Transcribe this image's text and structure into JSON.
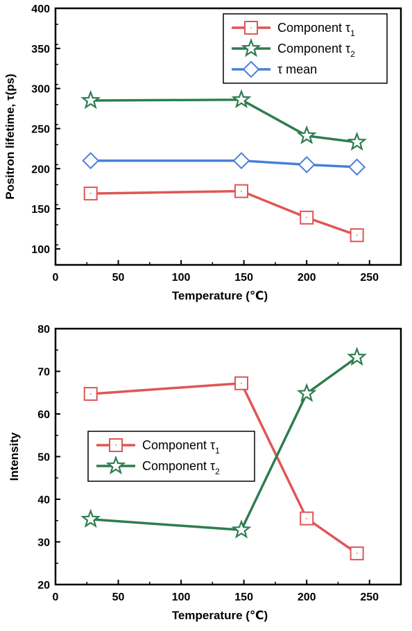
{
  "colors": {
    "tau1": "#e05555",
    "tau2": "#2e7d4f",
    "mean": "#4a7fd8",
    "axis": "#000000"
  },
  "chart_data": [
    {
      "type": "line",
      "title": "",
      "xlabel": "Temperature (℃)",
      "ylabel": "Positron lifetime, τ(ps)",
      "xlim": [
        0,
        275
      ],
      "ylim": [
        80,
        400
      ],
      "x_ticks": [
        0,
        50,
        100,
        150,
        200,
        250
      ],
      "y_ticks": [
        100,
        150,
        200,
        250,
        300,
        350,
        400
      ],
      "grid": false,
      "legend_position": "top-right",
      "x": [
        28,
        148,
        200,
        240
      ],
      "series": [
        {
          "key": "tau1",
          "name": "Component τ",
          "sub": "1",
          "marker": "square",
          "values": [
            169,
            172,
            139,
            117
          ]
        },
        {
          "key": "tau2",
          "name": "Component τ",
          "sub": "2",
          "marker": "star",
          "values": [
            285,
            286,
            241,
            233
          ]
        },
        {
          "key": "mean",
          "name": "τ mean",
          "sub": "",
          "marker": "diamond",
          "values": [
            210,
            210,
            205,
            202
          ]
        }
      ]
    },
    {
      "type": "line",
      "title": "",
      "xlabel": "Temperature (℃)",
      "ylabel": "Intensity",
      "xlim": [
        0,
        275
      ],
      "ylim": [
        20,
        80
      ],
      "x_ticks": [
        0,
        50,
        100,
        150,
        200,
        250
      ],
      "y_ticks": [
        20,
        30,
        40,
        50,
        60,
        70,
        80
      ],
      "grid": false,
      "legend_position": "center-left",
      "x": [
        28,
        148,
        200,
        240
      ],
      "series": [
        {
          "key": "tau1",
          "name": "Component τ",
          "sub": "1",
          "marker": "square",
          "values": [
            64.7,
            67.2,
            35.5,
            27.3
          ]
        },
        {
          "key": "tau2",
          "name": "Component τ",
          "sub": "2",
          "marker": "star",
          "values": [
            35.3,
            32.8,
            64.8,
            73.3
          ]
        }
      ]
    }
  ]
}
